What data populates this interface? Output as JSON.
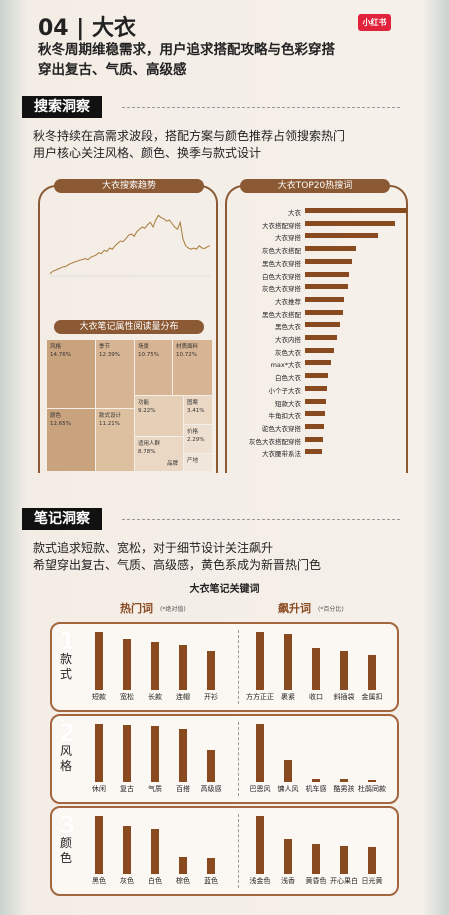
{
  "header": {
    "number_title": "04 | 大衣",
    "badge": "小红书",
    "subtitle_line1": "秋冬周期维稳需求，用户追求搭配攻略与色彩穿搭",
    "subtitle_line2": "穿出复古、气质、高级感"
  },
  "search_section": {
    "heading": "搜索洞察",
    "desc_line1": "秋冬持续在高需求波段，搭配方案与颜色推荐占领搜索热门",
    "desc_line2": "用户核心关注风格、颜色、换季与款式设计"
  },
  "notes_section": {
    "heading": "笔记洞察",
    "desc_line1": "款式追求短款、宽松，对于细节设计关注飙升",
    "desc_line2": "希望穿出复古、气质、高级感，黄色系成为新晋热门色"
  },
  "colors": {
    "brown": "#8a4a20",
    "panel_brown": "#8b5a34",
    "red_badge": "#e0233a"
  },
  "chart_data": [
    {
      "type": "line",
      "title": "大衣搜索趋势",
      "series": [
        {
          "values": [
            1,
            2,
            2.5,
            3,
            3.5,
            4,
            4.2,
            5,
            5.5,
            6,
            6.3,
            6.8,
            7,
            7.5,
            7,
            8,
            8.5,
            9,
            10,
            9.6,
            11,
            10.5,
            12,
            11.5,
            13,
            14,
            15,
            14.8,
            16,
            17.5,
            18,
            17,
            19,
            20,
            21,
            20.5,
            22,
            23,
            21,
            24,
            26,
            25,
            24.5,
            23.5,
            24,
            22.5,
            21,
            20,
            23,
            16,
            13,
            12,
            11.5,
            12,
            11.5,
            13,
            12,
            11.8,
            12.5,
            13
          ]
        }
      ],
      "ylim": [
        0,
        30
      ]
    },
    {
      "type": "heatmap",
      "title": "大衣笔记属性阅读量分布",
      "cells": [
        {
          "name": "风格",
          "value": "14.76%"
        },
        {
          "name": "季节",
          "value": "12.39%"
        },
        {
          "name": "场景",
          "value": "10.75%"
        },
        {
          "name": "材质面料",
          "value": "10.72%"
        },
        {
          "name": "颜色",
          "value": "12.65%"
        },
        {
          "name": "款式设计",
          "value": "11.21%"
        },
        {
          "name": "功能",
          "value": "9.22%"
        },
        {
          "name": "图案",
          "value": "3.41%"
        },
        {
          "name": "适用人群",
          "value": "8.78%"
        },
        {
          "name": "价格",
          "value": "2.29%"
        },
        {
          "name": "产地",
          "value": ""
        },
        {
          "name": "品牌",
          "value": ""
        }
      ]
    },
    {
      "type": "bar",
      "title": "大衣TOP20热搜词",
      "categories": [
        "大衣",
        "大衣搭配穿搭",
        "大衣穿搭",
        "灰色大衣搭配",
        "黑色大衣穿搭",
        "白色大衣穿搭",
        "灰色大衣穿搭",
        "大衣推荐",
        "黑色大衣搭配",
        "黑色大衣",
        "大衣内搭",
        "灰色大衣",
        "max*大衣",
        "白色大衣",
        "小个子大衣",
        "短款大衣",
        "牛角扣大衣",
        "驼色大衣穿搭",
        "灰色大衣搭配穿搭",
        "大衣腰带系法"
      ],
      "values": [
        100,
        88,
        72,
        50,
        46,
        43,
        42,
        38,
        37,
        34,
        31,
        28,
        25,
        23,
        22,
        21,
        20,
        19,
        18,
        17
      ],
      "xlim": [
        0,
        100
      ]
    },
    {
      "type": "bar",
      "title": "大衣笔记关键词",
      "groups": [
        {
          "num": "1",
          "category": "款式",
          "hot": {
            "label": "热门词",
            "note": "(*绝对值)",
            "categories": [
              "短款",
              "宽松",
              "长款",
              "连帽",
              "开衫"
            ],
            "values": [
              100,
              88,
              82,
              78,
              68
            ]
          },
          "rising": {
            "label": "飙升词",
            "note": "(*百分比)",
            "categories": [
              "方方正正",
              "裹紧",
              "收口",
              "斜插袋",
              "金属扣"
            ],
            "values": [
              100,
              96,
              72,
              68,
              60
            ]
          }
        },
        {
          "num": "2",
          "category": "风格",
          "hot": {
            "categories": [
              "休闲",
              "复古",
              "气质",
              "百搭",
              "高级感"
            ],
            "values": [
              100,
              98,
              96,
              92,
              55
            ]
          },
          "rising": {
            "categories": [
              "巴恩风",
              "慵人风",
              "机车感",
              "酷男孩",
              "杜鹃同款"
            ],
            "values": [
              100,
              38,
              6,
              6,
              4
            ]
          }
        },
        {
          "num": "3",
          "category": "颜色",
          "hot": {
            "categories": [
              "黑色",
              "灰色",
              "白色",
              "棕色",
              "蓝色"
            ],
            "values": [
              100,
              82,
              78,
              30,
              28
            ]
          },
          "rising": {
            "categories": [
              "浅金色",
              "浅香",
              "黄昏色",
              "开心果白",
              "日光黄"
            ],
            "values": [
              100,
              60,
              52,
              48,
              46
            ]
          }
        }
      ]
    }
  ]
}
